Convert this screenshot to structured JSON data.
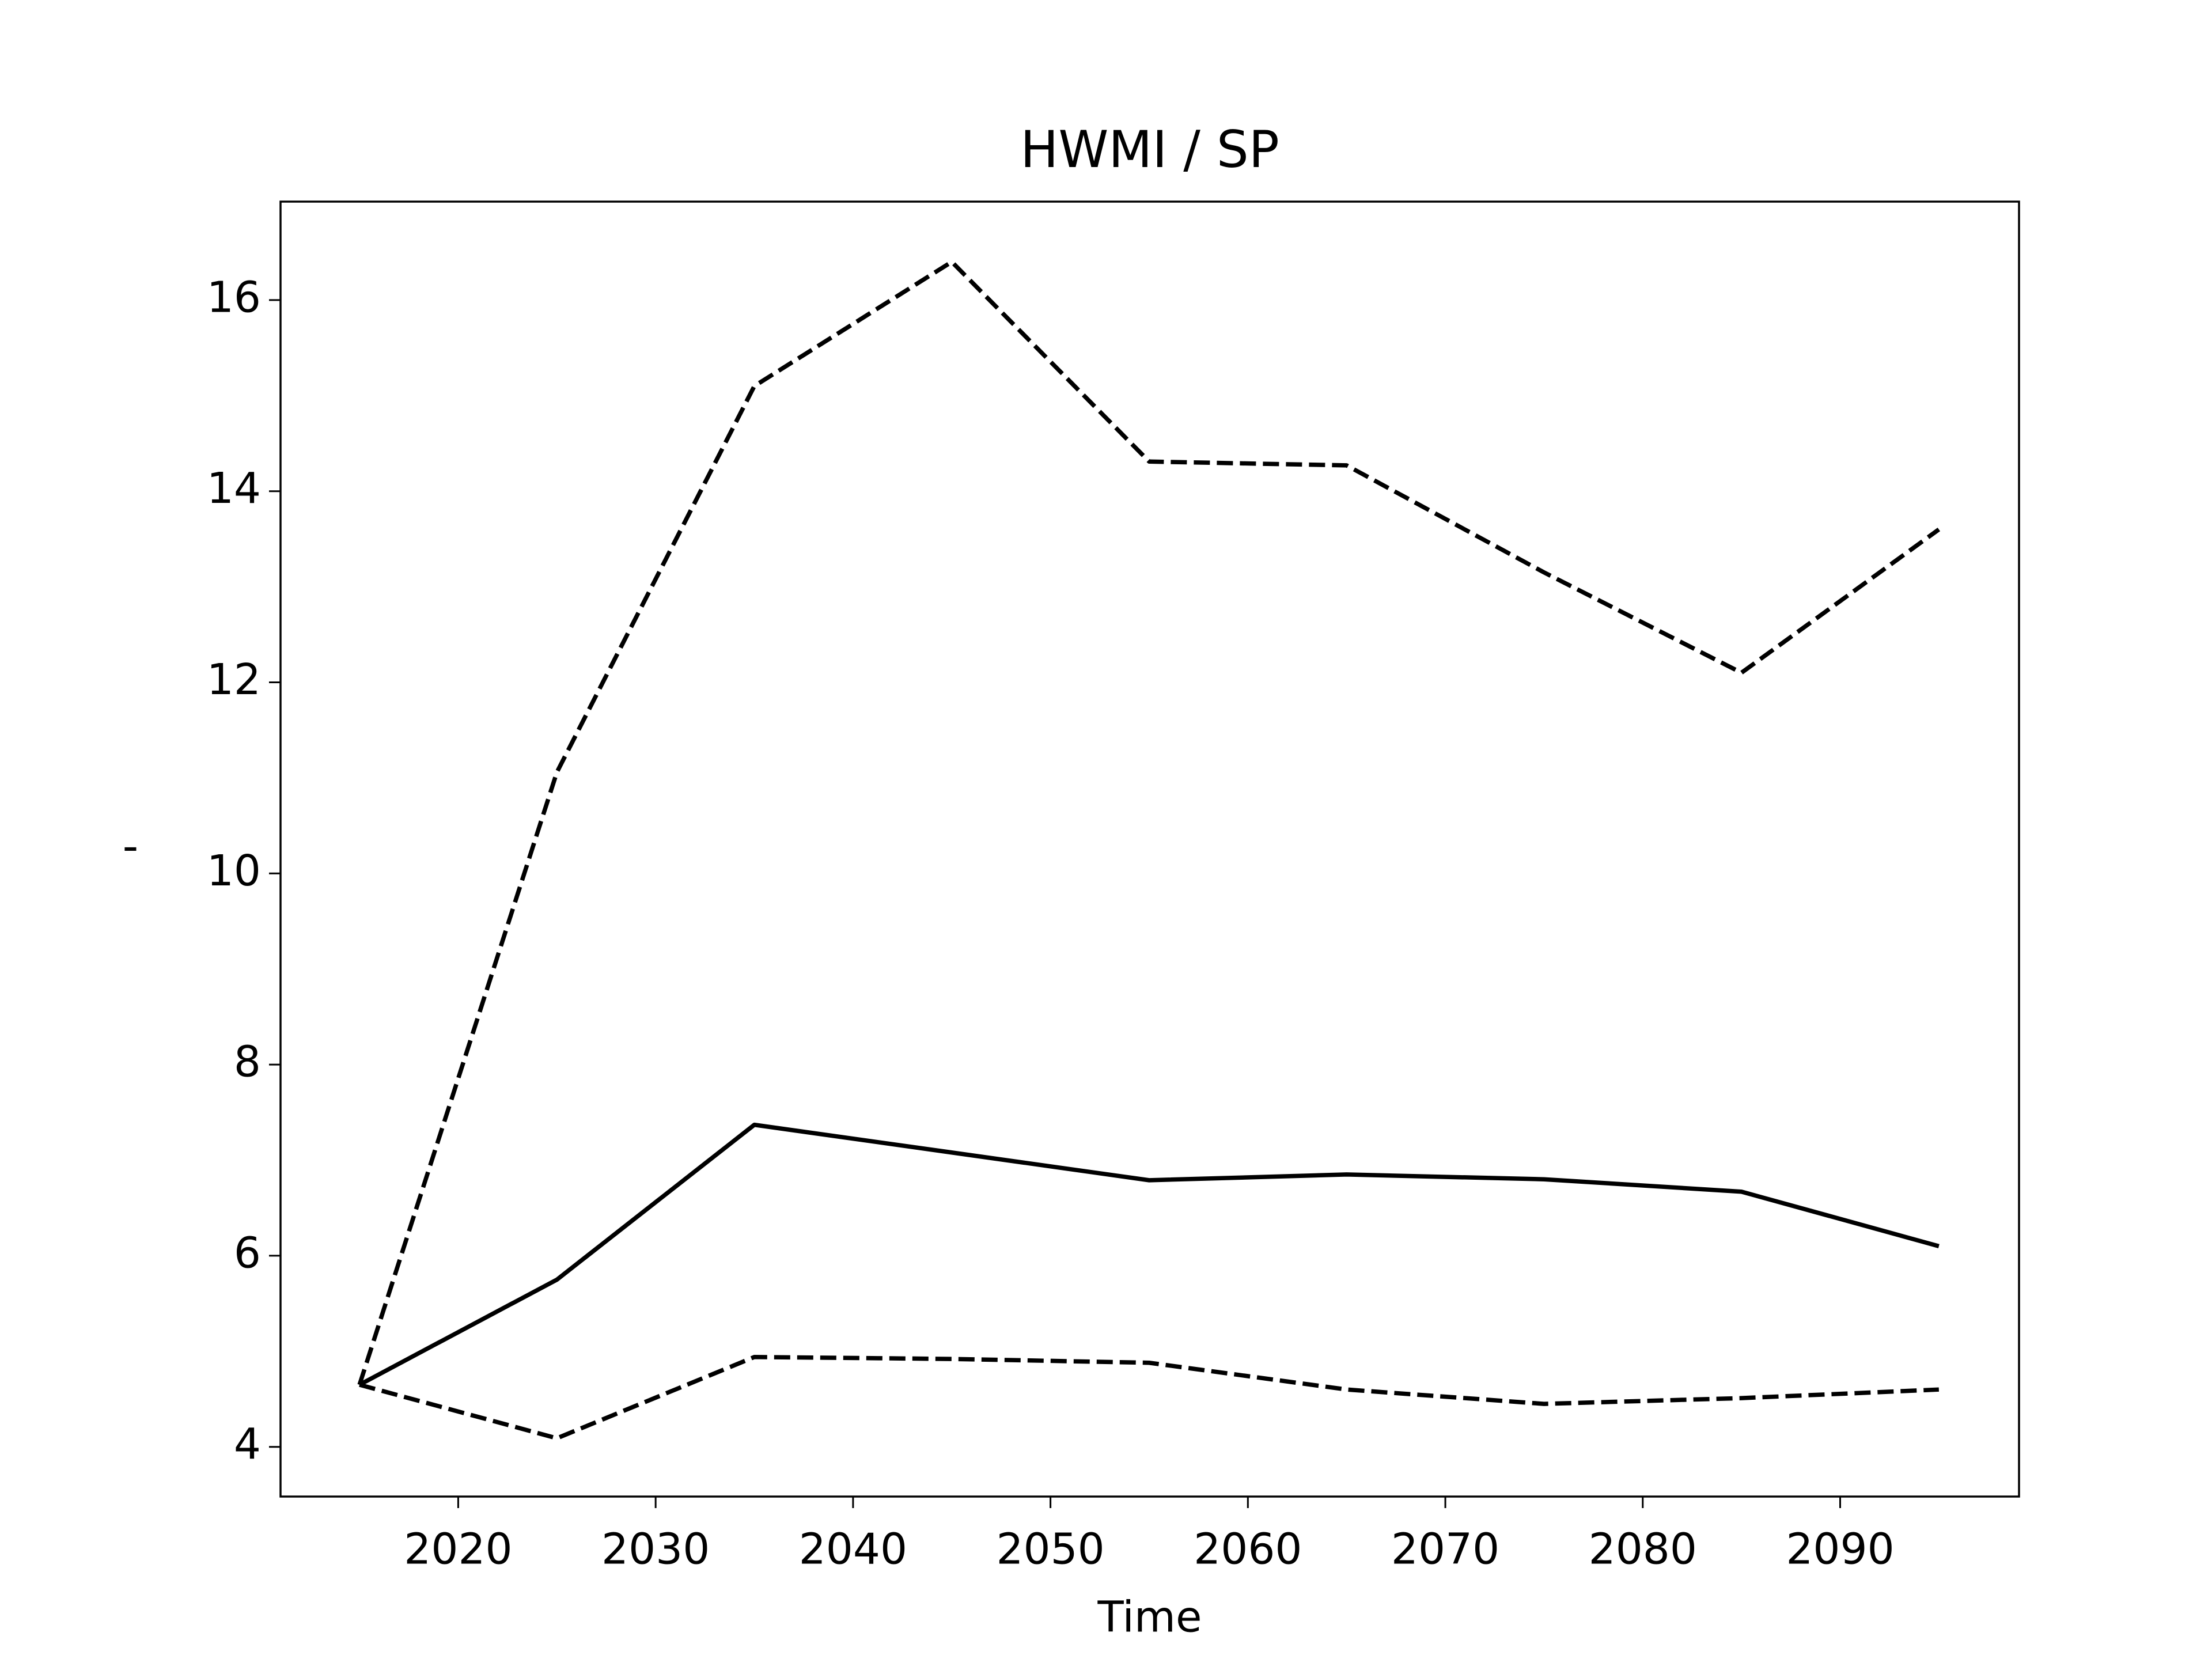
{
  "chart_data": {
    "type": "line",
    "title": "HWMI / SP",
    "x_label": "Time",
    "y_label": "'",
    "x": [
      2015,
      2025,
      2035,
      2045,
      2055,
      2065,
      2075,
      2085,
      2095
    ],
    "series": [
      {
        "color": "#000000",
        "dashed": false,
        "values": [
          4.65,
          5.75,
          7.37,
          7.08,
          6.79,
          6.85,
          6.8,
          6.67,
          6.1
        ]
      },
      {
        "color": "#000000",
        "dashed": true,
        "values": [
          4.65,
          11.06,
          15.1,
          16.4,
          14.31,
          14.27,
          13.15,
          12.1,
          13.6
        ]
      },
      {
        "color": "#000000",
        "dashed": true,
        "values": [
          4.65,
          4.09,
          4.94,
          4.92,
          4.88,
          4.6,
          4.45,
          4.51,
          4.6
        ]
      }
    ],
    "xlim": [
      2011,
      2099.06
    ],
    "ylim": [
      3.48,
      17.03
    ],
    "xticks": [
      2020,
      2030,
      2040,
      2050,
      2060,
      2070,
      2080,
      2090
    ],
    "yticks": [
      4,
      6,
      8,
      10,
      12,
      14,
      16
    ],
    "grid": false
  }
}
